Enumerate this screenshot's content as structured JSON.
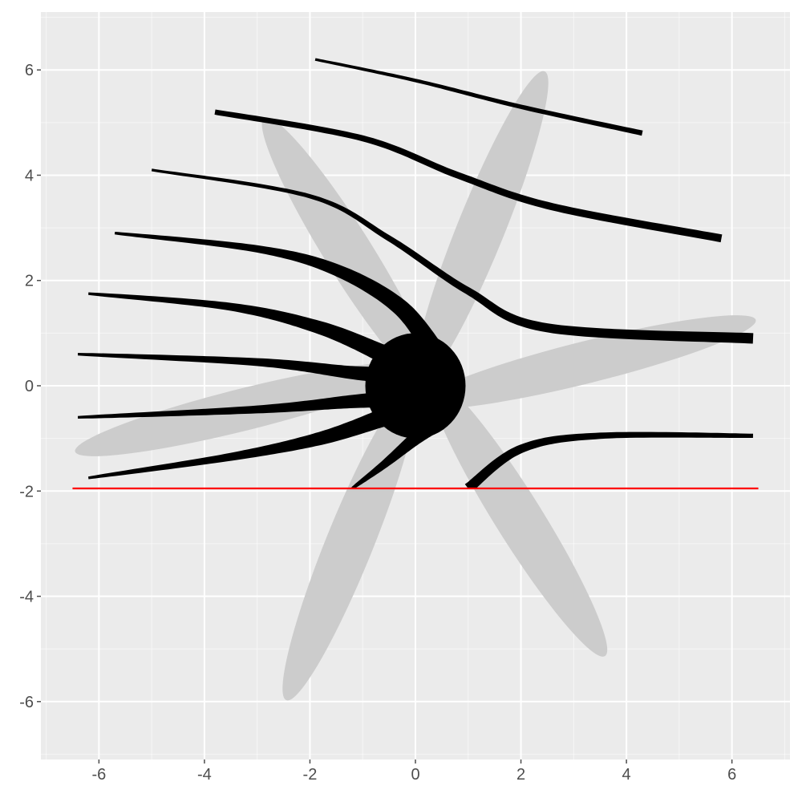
{
  "chart_data": {
    "type": "shape-plot",
    "title": "",
    "xlabel": "",
    "ylabel": "",
    "xlim": [
      -7.1,
      7.1
    ],
    "ylim": [
      -7.1,
      7.1
    ],
    "x_ticks": [
      -6,
      -4,
      -2,
      0,
      2,
      4,
      6
    ],
    "y_ticks": [
      -6,
      -4,
      -2,
      0,
      2,
      4,
      6
    ],
    "x_tick_labels": [
      "-6",
      "-4",
      "-2",
      "0",
      "2",
      "4",
      "6"
    ],
    "y_tick_labels": [
      "-6",
      "-4",
      "-2",
      "0",
      "2",
      "4",
      "6"
    ],
    "grid": true,
    "colors": {
      "panel_background": "#ebebeb",
      "grid": "#ffffff",
      "petal_fill": "#cccccc",
      "stroke_fill": "#000000",
      "reference_line": "#ff0000",
      "tick": "#4d4d4d"
    },
    "ellipses": [
      {
        "name": "petal-ne",
        "cx": 1.25,
        "cy": 3.0,
        "semi_major": 3.2,
        "semi_minor": 0.45,
        "angle_deg": 68
      },
      {
        "name": "petal-nw",
        "cx": -1.25,
        "cy": 2.5,
        "semi_major": 3.05,
        "semi_minor": 0.45,
        "angle_deg": -58
      },
      {
        "name": "petal-e",
        "cx": 3.25,
        "cy": 0.45,
        "semi_major": 3.3,
        "semi_minor": 0.4,
        "angle_deg": 14
      },
      {
        "name": "petal-w",
        "cx": -3.25,
        "cy": -0.45,
        "semi_major": 3.3,
        "semi_minor": 0.4,
        "angle_deg": 14
      },
      {
        "name": "petal-sw",
        "cx": -1.25,
        "cy": -3.0,
        "semi_major": 3.2,
        "semi_minor": 0.45,
        "angle_deg": 68
      },
      {
        "name": "petal-se",
        "cx": 1.95,
        "cy": -2.5,
        "semi_major": 3.1,
        "semi_minor": 0.45,
        "angle_deg": -58
      }
    ],
    "blob": {
      "cx": 0.0,
      "cy": 0.0,
      "rx": 0.95,
      "ry": 1.0
    },
    "strands": [
      {
        "name": "strand-1",
        "points": [
          [
            -1.9,
            6.2
          ],
          [
            0.0,
            5.8
          ],
          [
            2.0,
            5.3
          ],
          [
            4.3,
            4.8
          ]
        ],
        "start_width": 0.05,
        "end_width": 0.1
      },
      {
        "name": "strand-2",
        "points": [
          [
            -3.8,
            5.2
          ],
          [
            -1.0,
            4.7
          ],
          [
            0.8,
            4.0
          ],
          [
            2.6,
            3.4
          ],
          [
            5.8,
            2.8
          ]
        ],
        "start_width": 0.1,
        "end_width": 0.15
      },
      {
        "name": "strand-3",
        "points": [
          [
            -5.0,
            4.1
          ],
          [
            -2.0,
            3.6
          ],
          [
            -0.5,
            2.8
          ],
          [
            1.0,
            1.8
          ],
          [
            2.5,
            1.1
          ],
          [
            6.4,
            0.9
          ]
        ],
        "start_width": 0.05,
        "end_width": 0.2
      },
      {
        "name": "strand-4",
        "points": [
          [
            -5.7,
            2.9
          ],
          [
            -3.0,
            2.6
          ],
          [
            -1.5,
            2.2
          ],
          [
            -0.3,
            1.5
          ],
          [
            0.4,
            0.6
          ]
        ],
        "start_width": 0.05,
        "end_width": 0.4
      },
      {
        "name": "strand-5",
        "points": [
          [
            -6.2,
            1.75
          ],
          [
            -3.5,
            1.5
          ],
          [
            -1.8,
            1.1
          ],
          [
            -0.6,
            0.6
          ]
        ],
        "start_width": 0.05,
        "end_width": 0.35
      },
      {
        "name": "strand-6",
        "points": [
          [
            -6.4,
            0.6
          ],
          [
            -3.0,
            0.45
          ],
          [
            -1.2,
            0.25
          ],
          [
            -0.4,
            0.2
          ]
        ],
        "start_width": 0.05,
        "end_width": 0.35
      },
      {
        "name": "strand-7",
        "points": [
          [
            -6.4,
            -0.6
          ],
          [
            -3.0,
            -0.45
          ],
          [
            -1.2,
            -0.3
          ],
          [
            -0.4,
            -0.25
          ]
        ],
        "start_width": 0.05,
        "end_width": 0.35
      },
      {
        "name": "strand-8",
        "points": [
          [
            -6.2,
            -1.75
          ],
          [
            -3.5,
            -1.35
          ],
          [
            -1.8,
            -1.0
          ],
          [
            -0.6,
            -0.6
          ]
        ],
        "start_width": 0.05,
        "end_width": 0.35
      },
      {
        "name": "strand-9",
        "points": [
          [
            -1.2,
            -1.95
          ],
          [
            -0.6,
            -1.5
          ],
          [
            0.0,
            -1.0
          ],
          [
            0.4,
            -0.7
          ]
        ],
        "start_width": 0.05,
        "end_width": 0.35
      },
      {
        "name": "strand-10",
        "points": [
          [
            1.0,
            -1.95
          ],
          [
            2.0,
            -1.2
          ],
          [
            3.5,
            -0.95
          ],
          [
            6.4,
            -0.95
          ]
        ],
        "start_width": 0.2,
        "end_width": 0.08
      }
    ],
    "reference_line": {
      "y": -1.95,
      "x_from": -6.5,
      "x_to": 6.5
    }
  }
}
